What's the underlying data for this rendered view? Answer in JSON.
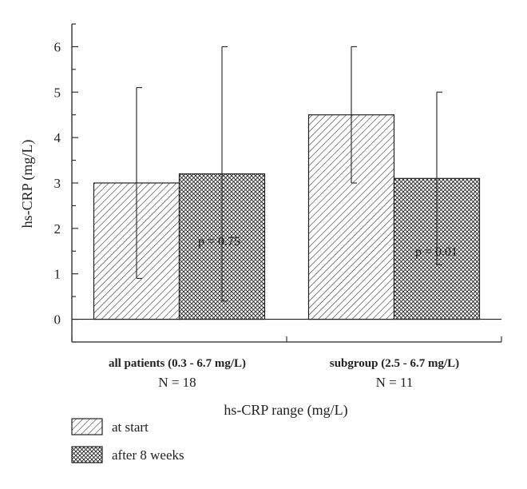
{
  "chart_data": {
    "type": "bar",
    "title": "",
    "xlabel": "hs-CRP range (mg/L)",
    "ylabel": "hs-CRP (mg/L)",
    "ylim": [
      -0.5,
      6.5
    ],
    "yticks": [
      0,
      1,
      2,
      3,
      4,
      5,
      6
    ],
    "categories": [
      "all patients (0.3 - 6.7 mg/L)",
      "subgroup (2.5 - 6.7 mg/L)"
    ],
    "category_n": [
      "N = 18",
      "N = 11"
    ],
    "series": [
      {
        "name": "at start",
        "pattern": "diagonal-hatch",
        "values": [
          3.0,
          4.5
        ],
        "error_low": [
          0.9,
          3.0
        ],
        "error_high": [
          5.1,
          6.0
        ]
      },
      {
        "name": "after 8 weeks",
        "pattern": "cross-hatch",
        "values": [
          3.2,
          3.1
        ],
        "error_low": [
          0.4,
          1.2
        ],
        "error_high": [
          6.0,
          5.0
        ]
      }
    ],
    "annotations": [
      "p = 0.75",
      "p = 0.01"
    ],
    "legend_position": "bottom-left",
    "grid": false
  },
  "colors": {
    "ink": "#222222",
    "background": "#ffffff"
  }
}
